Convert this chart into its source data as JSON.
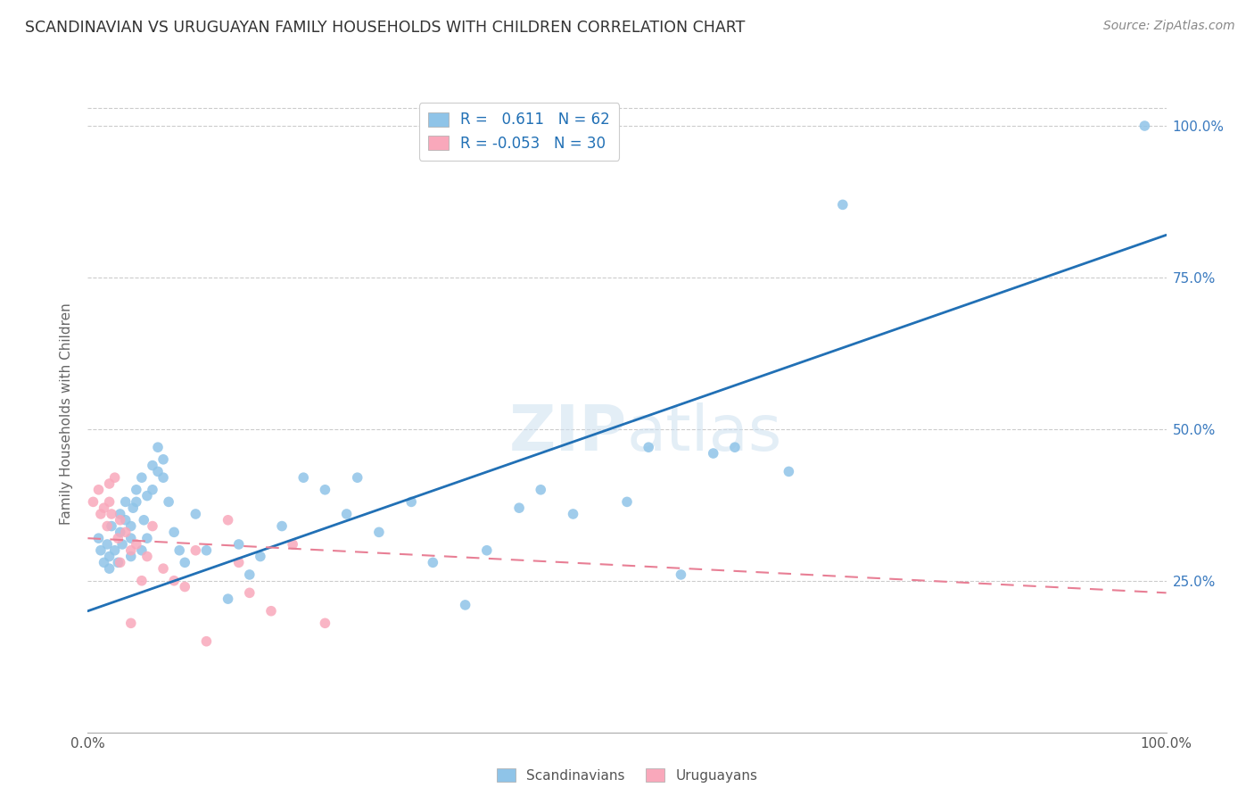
{
  "title": "SCANDINAVIAN VS URUGUAYAN FAMILY HOUSEHOLDS WITH CHILDREN CORRELATION CHART",
  "source": "Source: ZipAtlas.com",
  "ylabel": "Family Households with Children",
  "watermark": "ZIPatlas",
  "scandinavian_R": 0.611,
  "scandinavian_N": 62,
  "uruguayan_R": -0.053,
  "uruguayan_N": 30,
  "xlim": [
    0,
    100
  ],
  "ylim": [
    0,
    100
  ],
  "yticks": [
    25,
    50,
    75,
    100
  ],
  "ytick_labels": [
    "25.0%",
    "50.0%",
    "75.0%",
    "100.0%"
  ],
  "scand_color": "#8fc4e8",
  "urug_color": "#f9a8bb",
  "scand_line_color": "#2170b5",
  "urug_line_color": "#e87f95",
  "legend_label_scand": "Scandinavians",
  "legend_label_urug": "Uruguayans",
  "scandinavian_x": [
    1.0,
    1.2,
    1.5,
    1.8,
    2.0,
    2.0,
    2.2,
    2.5,
    2.8,
    3.0,
    3.0,
    3.2,
    3.5,
    3.5,
    4.0,
    4.0,
    4.0,
    4.2,
    4.5,
    4.5,
    5.0,
    5.0,
    5.2,
    5.5,
    5.5,
    6.0,
    6.0,
    6.5,
    6.5,
    7.0,
    7.0,
    7.5,
    8.0,
    8.5,
    9.0,
    10.0,
    11.0,
    13.0,
    14.0,
    15.0,
    16.0,
    18.0,
    20.0,
    22.0,
    24.0,
    25.0,
    27.0,
    30.0,
    32.0,
    35.0,
    37.0,
    40.0,
    42.0,
    45.0,
    50.0,
    52.0,
    55.0,
    58.0,
    60.0,
    65.0,
    70.0,
    98.0
  ],
  "scandinavian_y": [
    32,
    30,
    28,
    31,
    27,
    29,
    34,
    30,
    28,
    33,
    36,
    31,
    35,
    38,
    32,
    34,
    29,
    37,
    40,
    38,
    42,
    30,
    35,
    39,
    32,
    44,
    40,
    43,
    47,
    45,
    42,
    38,
    33,
    30,
    28,
    36,
    30,
    22,
    31,
    26,
    29,
    34,
    42,
    40,
    36,
    42,
    33,
    38,
    28,
    21,
    30,
    37,
    40,
    36,
    38,
    47,
    26,
    46,
    47,
    43,
    87,
    100
  ],
  "uruguayan_x": [
    0.5,
    1.0,
    1.2,
    1.5,
    1.8,
    2.0,
    2.0,
    2.2,
    2.5,
    2.8,
    3.0,
    3.0,
    3.5,
    4.0,
    4.0,
    4.5,
    5.0,
    5.5,
    6.0,
    7.0,
    8.0,
    9.0,
    10.0,
    11.0,
    13.0,
    14.0,
    15.0,
    17.0,
    19.0,
    22.0
  ],
  "uruguayan_y": [
    38,
    40,
    36,
    37,
    34,
    41,
    38,
    36,
    42,
    32,
    35,
    28,
    33,
    30,
    18,
    31,
    25,
    29,
    34,
    27,
    25,
    24,
    30,
    15,
    35,
    28,
    23,
    20,
    31,
    18
  ],
  "scand_line_x": [
    0,
    100
  ],
  "scand_line_y": [
    20,
    82
  ],
  "urug_line_x": [
    0,
    100
  ],
  "urug_line_y": [
    32,
    23
  ]
}
